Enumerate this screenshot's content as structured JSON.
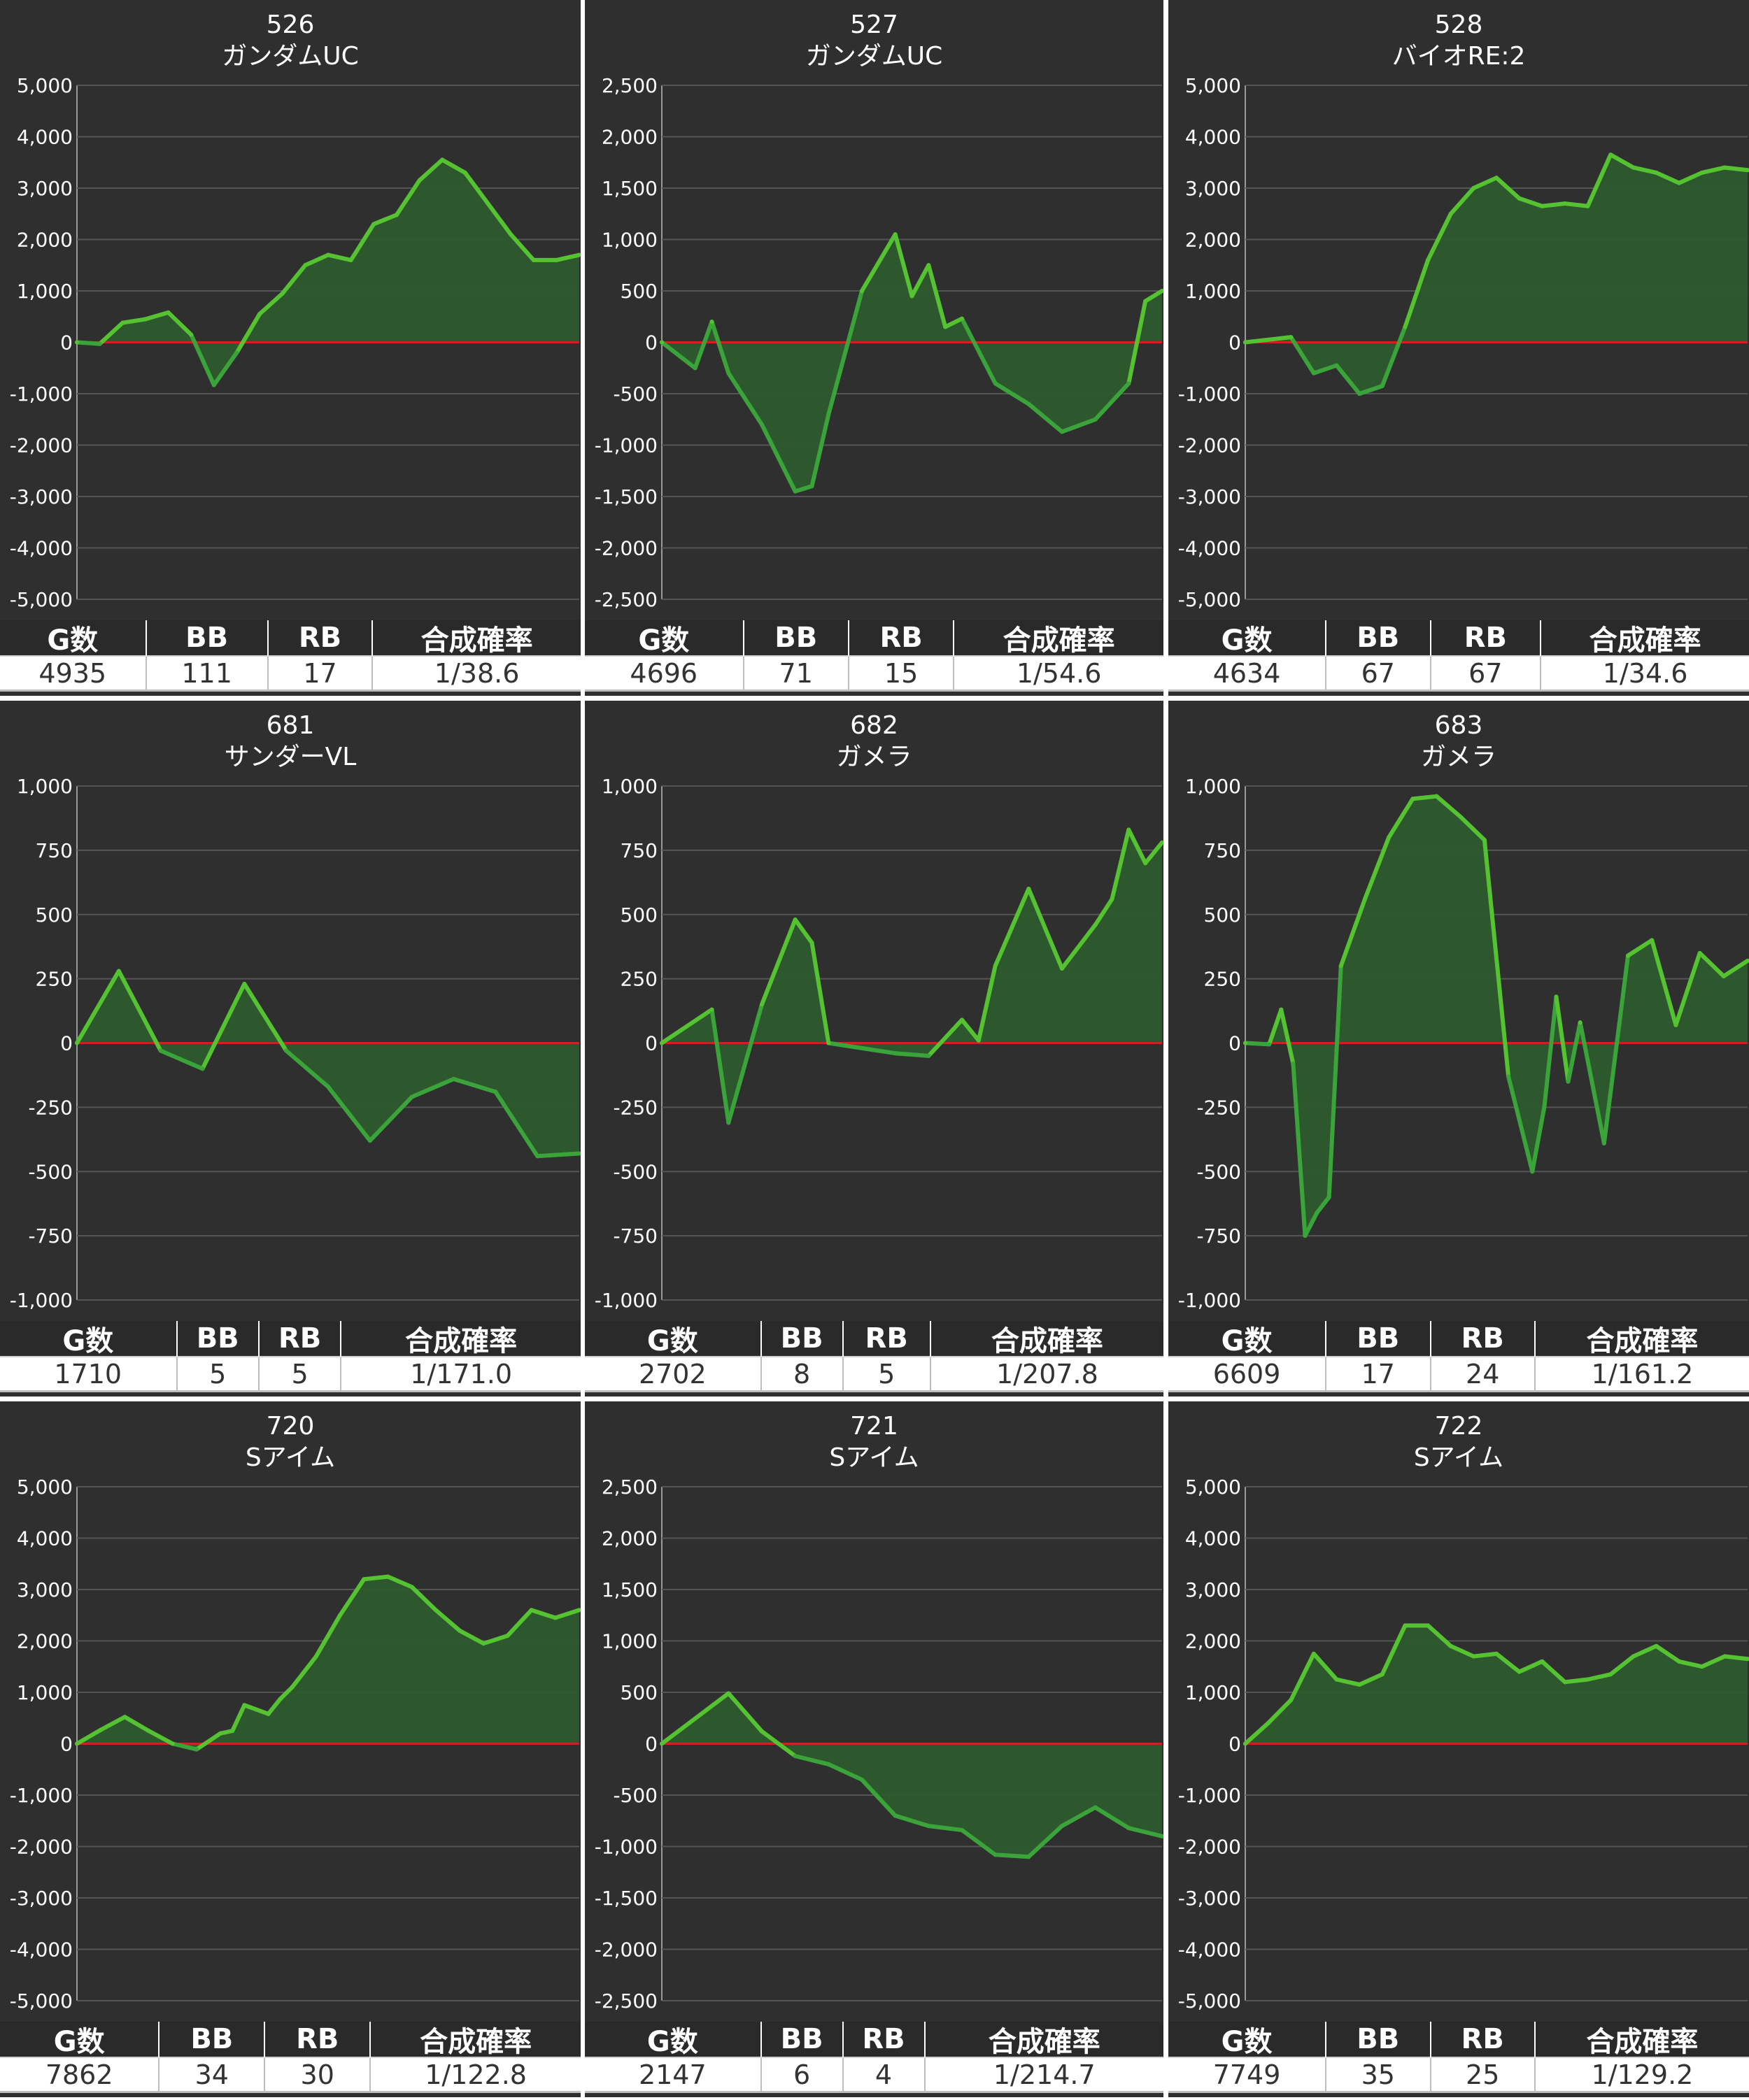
{
  "stats_headers": [
    "G数",
    "BB",
    "RB",
    "合成確率"
  ],
  "machines": [
    {
      "number": "526",
      "name": "ガンダムUC",
      "g": "4935",
      "bb": "111",
      "rb": "17",
      "prob": "1/38.6"
    },
    {
      "number": "527",
      "name": "ガンダムUC",
      "g": "4696",
      "bb": "71",
      "rb": "15",
      "prob": "1/54.6"
    },
    {
      "number": "528",
      "name": "バイオRE:2",
      "g": "4634",
      "bb": "67",
      "rb": "67",
      "prob": "1/34.6"
    },
    {
      "number": "681",
      "name": "サンダーVL",
      "g": "1710",
      "bb": "5",
      "rb": "5",
      "prob": "1/171.0"
    },
    {
      "number": "682",
      "name": "ガメラ",
      "g": "2702",
      "bb": "8",
      "rb": "5",
      "prob": "1/207.8"
    },
    {
      "number": "683",
      "name": "ガメラ",
      "g": "6609",
      "bb": "17",
      "rb": "24",
      "prob": "1/161.2"
    },
    {
      "number": "720",
      "name": "Sアイム",
      "g": "7862",
      "bb": "34",
      "rb": "30",
      "prob": "1/122.8"
    },
    {
      "number": "721",
      "name": "Sアイム",
      "g": "2147",
      "bb": "6",
      "rb": "4",
      "prob": "1/214.7"
    },
    {
      "number": "722",
      "name": "Sアイム",
      "g": "7749",
      "bb": "35",
      "rb": "25",
      "prob": "1/129.2"
    }
  ],
  "colors": {
    "line": "#55c232",
    "line_dark": "#3aa33a",
    "fill": "#2d5a2d",
    "zero_line": "#cc2222",
    "grid": "#555555",
    "panel_bg": "#2f2f2f"
  },
  "chart_data": [
    {
      "type": "area",
      "ylim": [
        -5000,
        5000
      ],
      "yticks": [
        5000,
        4000,
        3000,
        2000,
        1000,
        0,
        -1000,
        -2000,
        -3000,
        -4000,
        -5000
      ],
      "tick_labels": [
        "5,000",
        "4,000",
        "3,000",
        "2,000",
        "1,000",
        "0",
        "-1,000",
        "-2,000",
        "-3,000",
        "-4,000",
        "-5,000"
      ],
      "x": [
        0,
        0.5,
        1,
        1.5,
        2,
        2.5,
        3,
        3.5,
        4,
        4.5,
        5,
        5.5,
        6,
        6.5,
        7,
        7.5,
        8,
        8.5,
        9,
        9.5,
        10,
        10.5,
        11
      ],
      "values": [
        0,
        -30,
        380,
        450,
        580,
        150,
        -830,
        -200,
        550,
        950,
        1500,
        1700,
        1600,
        2300,
        2480,
        3150,
        3550,
        3300,
        2700,
        2100,
        1600,
        1600,
        1700
      ]
    },
    {
      "type": "area",
      "ylim": [
        -2500,
        2500
      ],
      "yticks": [
        2500,
        2000,
        1500,
        1000,
        500,
        0,
        -500,
        -1000,
        -1500,
        -2000,
        -2500
      ],
      "tick_labels": [
        "2,500",
        "2,000",
        "1,500",
        "1,000",
        "500",
        "0",
        "-500",
        "-1,000",
        "-1,500",
        "-2,000",
        "-2,500"
      ],
      "x": [
        0,
        1,
        1.5,
        2,
        3,
        4,
        4.5,
        5,
        6,
        7,
        7.5,
        8,
        8.5,
        9,
        10,
        11,
        12,
        13,
        14,
        14.5,
        15
      ],
      "values": [
        0,
        -250,
        200,
        -300,
        -800,
        -1450,
        -1400,
        -700,
        500,
        1050,
        450,
        750,
        150,
        230,
        -400,
        -600,
        -870,
        -750,
        -400,
        400,
        500
      ]
    },
    {
      "type": "area",
      "ylim": [
        -5000,
        5000
      ],
      "yticks": [
        5000,
        4000,
        3000,
        2000,
        1000,
        0,
        -1000,
        -2000,
        -3000,
        -4000,
        -5000
      ],
      "tick_labels": [
        "5,000",
        "4,000",
        "3,000",
        "2,000",
        "1,000",
        "0",
        "-1,000",
        "-2,000",
        "-3,000",
        "-4,000",
        "-5,000"
      ],
      "x": [
        0,
        1,
        2,
        3,
        4,
        5,
        6,
        7,
        8,
        9,
        10,
        11,
        12,
        13,
        14,
        15,
        16,
        17,
        18,
        19,
        20,
        21,
        22
      ],
      "values": [
        0,
        50,
        100,
        -600,
        -450,
        -1000,
        -850,
        300,
        1600,
        2500,
        3000,
        3200,
        2800,
        2650,
        2700,
        2650,
        3650,
        3400,
        3300,
        3100,
        3300,
        3400,
        3350
      ]
    },
    {
      "type": "area",
      "ylim": [
        -1000,
        1000
      ],
      "yticks": [
        1000,
        750,
        500,
        250,
        0,
        -250,
        -500,
        -750,
        -1000
      ],
      "tick_labels": [
        "1,000",
        "750",
        "500",
        "250",
        "0",
        "-250",
        "-500",
        "-750",
        "-1,000"
      ],
      "x": [
        0,
        1,
        2,
        3,
        4,
        5,
        6,
        7,
        8,
        9,
        10,
        11,
        12
      ],
      "values": [
        0,
        280,
        -30,
        -100,
        230,
        -30,
        -170,
        -380,
        -210,
        -140,
        -190,
        -440,
        -430
      ]
    },
    {
      "type": "area",
      "ylim": [
        -1000,
        1000
      ],
      "yticks": [
        1000,
        750,
        500,
        250,
        0,
        -250,
        -500,
        -750,
        -1000
      ],
      "tick_labels": [
        "1,000",
        "750",
        "500",
        "250",
        "0",
        "-250",
        "-500",
        "-750",
        "-1,000"
      ],
      "x": [
        0,
        1.5,
        2,
        3,
        4,
        4.5,
        5,
        6,
        7,
        8,
        9,
        9.5,
        10,
        11,
        12,
        13,
        13.5,
        14,
        14.5,
        15
      ],
      "values": [
        0,
        130,
        -310,
        150,
        480,
        390,
        0,
        -20,
        -40,
        -50,
        90,
        10,
        300,
        600,
        290,
        460,
        560,
        830,
        700,
        780
      ]
    },
    {
      "type": "area",
      "ylim": [
        -1000,
        1000
      ],
      "yticks": [
        1000,
        750,
        500,
        250,
        0,
        -250,
        -500,
        -750,
        -1000
      ],
      "tick_labels": [
        "1,000",
        "750",
        "500",
        "250",
        "0",
        "-250",
        "-500",
        "-750",
        "-1,000"
      ],
      "x": [
        0,
        1,
        1.5,
        2,
        2.5,
        3,
        3.5,
        4,
        5,
        6,
        7,
        8,
        9,
        10,
        11,
        12,
        12.5,
        13,
        13.5,
        14,
        15,
        16,
        17,
        18,
        19,
        20,
        21
      ],
      "values": [
        0,
        -5,
        130,
        -80,
        -750,
        -660,
        -600,
        300,
        560,
        800,
        950,
        960,
        880,
        790,
        -130,
        -500,
        -250,
        180,
        -150,
        80,
        -390,
        340,
        400,
        70,
        350,
        260,
        320
      ]
    },
    {
      "type": "area",
      "ylim": [
        -5000,
        5000
      ],
      "yticks": [
        5000,
        4000,
        3000,
        2000,
        1000,
        0,
        -1000,
        -2000,
        -3000,
        -4000,
        -5000
      ],
      "tick_labels": [
        "5,000",
        "4,000",
        "3,000",
        "2,000",
        "1,000",
        "0",
        "-1,000",
        "-2,000",
        "-3,000",
        "-4,000",
        "-5,000"
      ],
      "x": [
        0,
        1,
        2,
        3,
        4,
        5,
        6,
        6.5,
        7,
        8,
        8.5,
        9,
        10,
        11,
        12,
        13,
        14,
        15,
        16,
        17,
        18,
        19,
        20,
        21
      ],
      "values": [
        0,
        270,
        520,
        250,
        0,
        -110,
        200,
        250,
        750,
        580,
        870,
        1100,
        1700,
        2500,
        3200,
        3250,
        3050,
        2600,
        2200,
        1950,
        2100,
        2600,
        2450,
        2600
      ]
    },
    {
      "type": "area",
      "ylim": [
        -2500,
        2500
      ],
      "yticks": [
        2500,
        2000,
        1500,
        1000,
        500,
        0,
        -500,
        -1000,
        -1500,
        -2000,
        -2500
      ],
      "tick_labels": [
        "2,500",
        "2,000",
        "1,500",
        "1,000",
        "500",
        "0",
        "-500",
        "-1,000",
        "-1,500",
        "-2,000",
        "-2,500"
      ],
      "x": [
        0,
        2,
        3,
        4,
        5,
        6,
        7,
        8,
        9,
        10,
        11,
        12,
        13,
        14,
        15
      ],
      "values": [
        0,
        490,
        120,
        -120,
        -200,
        -350,
        -700,
        -800,
        -840,
        -1080,
        -1100,
        -800,
        -620,
        -820,
        -900
      ]
    },
    {
      "type": "area",
      "ylim": [
        -5000,
        5000
      ],
      "yticks": [
        5000,
        4000,
        3000,
        2000,
        1000,
        0,
        -1000,
        -2000,
        -3000,
        -4000,
        -5000
      ],
      "tick_labels": [
        "5,000",
        "4,000",
        "3,000",
        "2,000",
        "1,000",
        "0",
        "-1,000",
        "-2,000",
        "-3,000",
        "-4,000",
        "-5,000"
      ],
      "x": [
        0,
        1,
        2,
        3,
        4,
        5,
        6,
        7,
        8,
        9,
        10,
        11,
        12,
        13,
        14,
        15,
        16,
        17,
        18,
        19,
        20,
        21,
        22
      ],
      "values": [
        0,
        400,
        850,
        1750,
        1250,
        1150,
        1350,
        2300,
        2300,
        1900,
        1700,
        1750,
        1400,
        1600,
        1200,
        1250,
        1350,
        1700,
        1900,
        1600,
        1500,
        1700,
        1650
      ]
    }
  ]
}
